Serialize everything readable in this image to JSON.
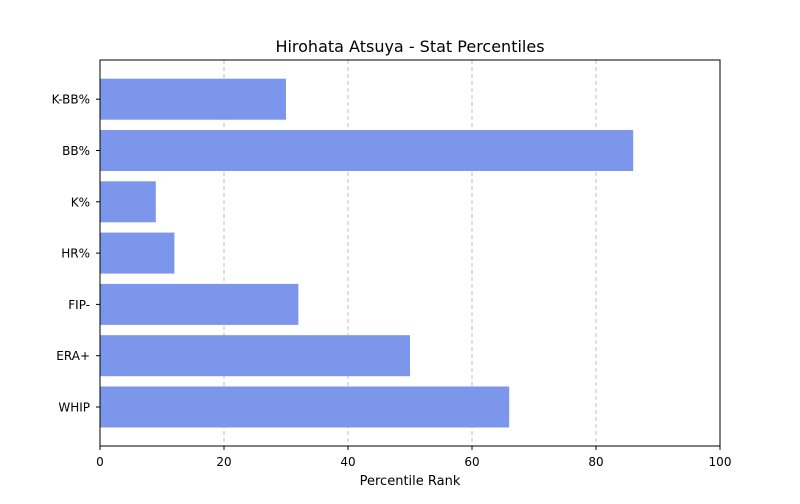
{
  "chart_data": {
    "type": "bar",
    "orientation": "horizontal",
    "title": "Hirohata Atsuya - Stat Percentiles",
    "xlabel": "Percentile Rank",
    "ylabel": "",
    "categories": [
      "WHIP",
      "ERA+",
      "FIP-",
      "HR%",
      "K%",
      "BB%",
      "K-BB%"
    ],
    "values": [
      66,
      50,
      32,
      12,
      9,
      86,
      30
    ],
    "xlim": [
      0,
      100
    ],
    "xticks": [
      0,
      20,
      40,
      60,
      80,
      100
    ],
    "grid": "x-axis dashed",
    "bar_color": "#7b96ea"
  }
}
